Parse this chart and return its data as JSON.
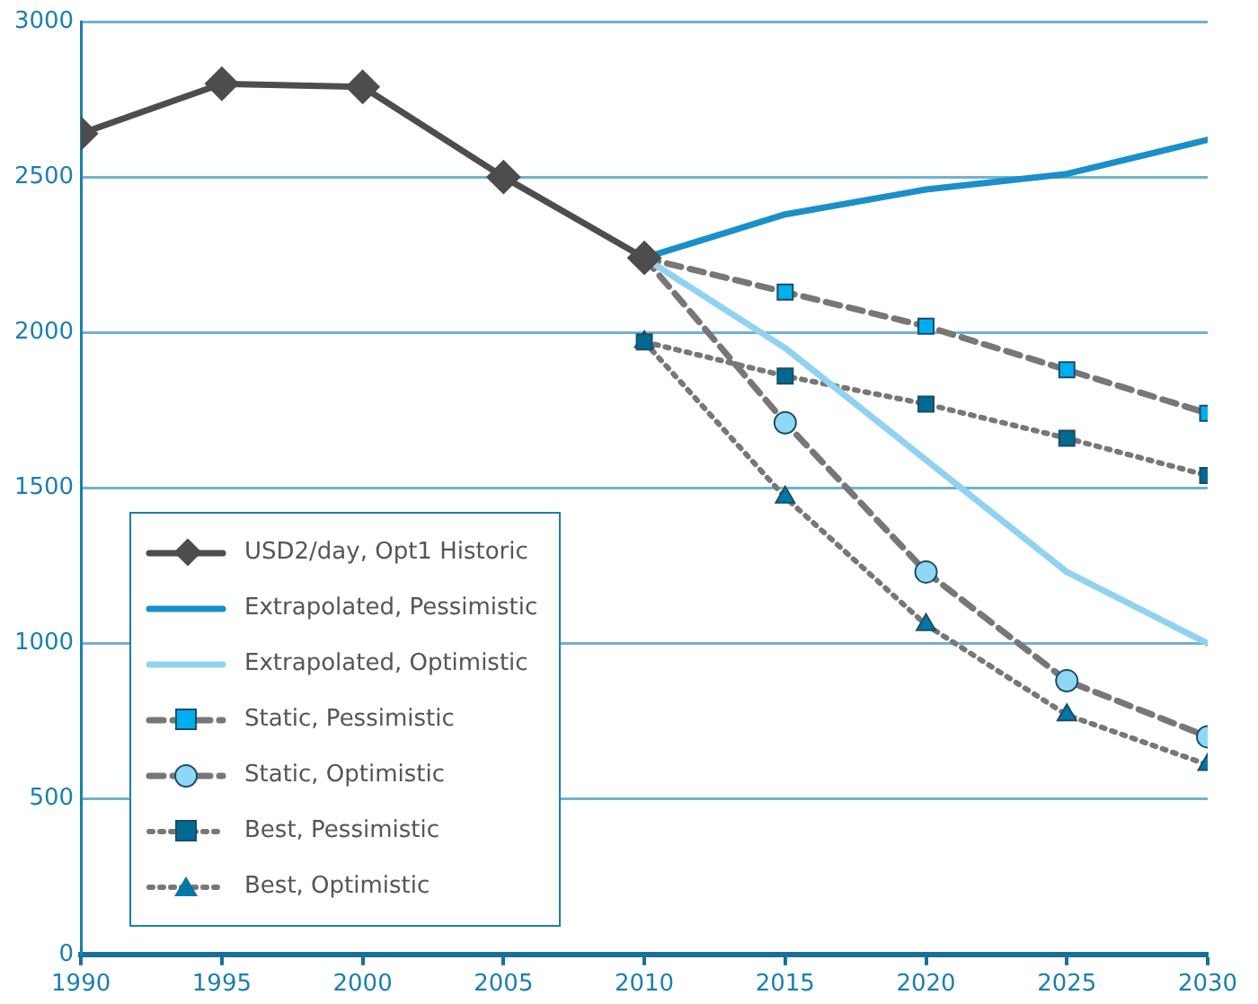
{
  "chart_data": {
    "type": "line",
    "xlim": [
      1990,
      2030
    ],
    "xticks": [
      1990,
      1995,
      2000,
      2005,
      2010,
      2015,
      2020,
      2025,
      2030
    ],
    "ylim": [
      0,
      3000
    ],
    "yticks": [
      0,
      500,
      1000,
      1500,
      2000,
      2500,
      3000
    ],
    "grid": "y",
    "legend": "left",
    "series": [
      {
        "name": "USD2/day, Opt1 Historic",
        "color": "#4d4d4d",
        "marker": "diamond",
        "line_style": "solid",
        "x": [
          1990,
          1995,
          2000,
          2005,
          2010
        ],
        "values": [
          2640,
          2800,
          2790,
          2500,
          2240
        ]
      },
      {
        "name": "Extrapolated, Pessimistic",
        "color": "#1a8fc9",
        "marker": "none",
        "line_style": "solid",
        "x": [
          2010,
          2015,
          2020,
          2025,
          2030
        ],
        "values": [
          2240,
          2380,
          2460,
          2510,
          2620
        ]
      },
      {
        "name": "Extrapolated, Optimistic",
        "color": "#8fd3f0",
        "marker": "none",
        "line_style": "solid",
        "x": [
          2010,
          2015,
          2020,
          2025,
          2030
        ],
        "values": [
          2240,
          1950,
          1590,
          1230,
          1000
        ]
      },
      {
        "name": "Static, Pessimistic",
        "color": "#00aeef",
        "marker": "square",
        "line_style": "dashed",
        "x": [
          2010,
          2015,
          2020,
          2025,
          2030
        ],
        "values": [
          2240,
          2130,
          2020,
          1880,
          1740
        ]
      },
      {
        "name": "Static, Optimistic",
        "color": "#8fd8f5",
        "marker": "circle",
        "line_style": "dashed",
        "x": [
          2010,
          2015,
          2020,
          2025,
          2030
        ],
        "values": [
          2240,
          1710,
          1230,
          880,
          700
        ]
      },
      {
        "name": "Best, Pessimistic",
        "color": "#006a93",
        "marker": "square",
        "line_style": "dotted",
        "x": [
          2010,
          2015,
          2020,
          2025,
          2030
        ],
        "values": [
          1970,
          1860,
          1770,
          1660,
          1540
        ]
      },
      {
        "name": "Best, Optimistic",
        "color": "#0077a6",
        "marker": "triangle",
        "line_style": "dotted",
        "x": [
          2010,
          2015,
          2020,
          2025,
          2030
        ],
        "values": [
          1970,
          1470,
          1060,
          770,
          610
        ]
      }
    ]
  }
}
